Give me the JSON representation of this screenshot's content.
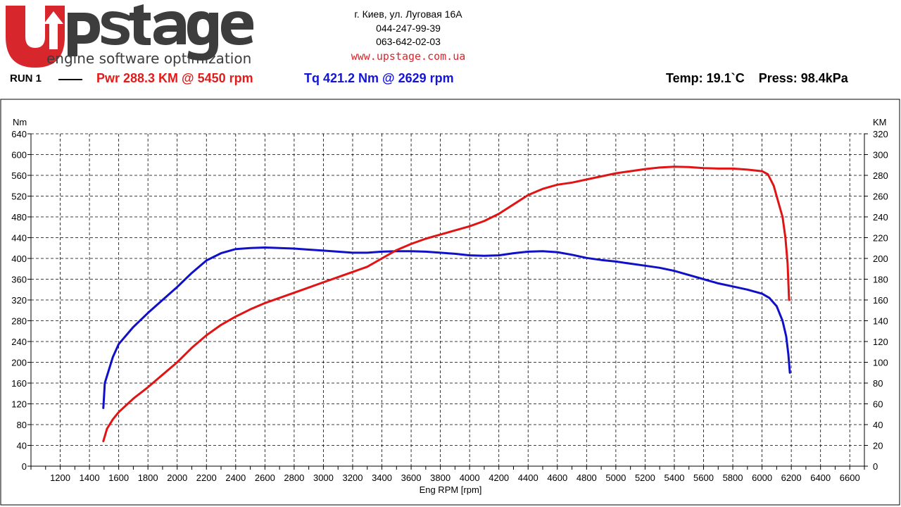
{
  "brand": {
    "logo_text": "Upstage",
    "tagline": "engine software optimization",
    "address": "г. Киев, ул. Луговая 16А",
    "phone_1": "044-247-99-39",
    "phone_2": "063-642-02-03",
    "website": "www.upstage.com.ua",
    "colors": {
      "red": "#d8262d",
      "gray": "#3d3d3d"
    }
  },
  "summary": {
    "run_label": "RUN 1",
    "power_text": "Pwr  288.3 KM @ 5450 rpm",
    "torque_text": "Tq 421.2 Nm @ 2629 rpm",
    "temp_text": "Temp: 19.1`C",
    "press_text": "Press: 98.4kPa"
  },
  "chart_data": {
    "type": "line",
    "xlabel": "Eng RPM [rpm]",
    "ylabel_left": "Nm",
    "ylabel_right": "KM",
    "xlim": [
      1000,
      6700
    ],
    "x_ticks": [
      1200,
      1400,
      1600,
      1800,
      2000,
      2200,
      2400,
      2600,
      2800,
      3000,
      3200,
      3400,
      3600,
      3800,
      4000,
      4200,
      4400,
      4600,
      4800,
      5000,
      5200,
      5400,
      5600,
      5800,
      6000,
      6200,
      6400,
      6600
    ],
    "y_left": {
      "lim": [
        0,
        640
      ],
      "ticks": [
        0,
        40,
        80,
        120,
        160,
        200,
        240,
        280,
        320,
        360,
        400,
        440,
        480,
        520,
        560,
        600,
        640
      ]
    },
    "y_right": {
      "lim": [
        0,
        320
      ],
      "ticks": [
        0,
        20,
        40,
        60,
        80,
        100,
        120,
        140,
        160,
        180,
        200,
        220,
        240,
        260,
        280,
        300,
        320
      ]
    },
    "grid": true,
    "series": [
      {
        "color": "#1010c8",
        "axis": "left",
        "points": [
          [
            1495,
            112
          ],
          [
            1505,
            160
          ],
          [
            1560,
            210
          ],
          [
            1600,
            235
          ],
          [
            1700,
            268
          ],
          [
            1800,
            295
          ],
          [
            1900,
            320
          ],
          [
            2000,
            345
          ],
          [
            2100,
            372
          ],
          [
            2200,
            396
          ],
          [
            2300,
            410
          ],
          [
            2400,
            418
          ],
          [
            2500,
            420
          ],
          [
            2600,
            421
          ],
          [
            2700,
            420
          ],
          [
            2800,
            419
          ],
          [
            2900,
            417
          ],
          [
            3000,
            415
          ],
          [
            3100,
            413
          ],
          [
            3200,
            411
          ],
          [
            3300,
            411
          ],
          [
            3400,
            413
          ],
          [
            3500,
            414
          ],
          [
            3600,
            414
          ],
          [
            3700,
            413
          ],
          [
            3800,
            411
          ],
          [
            3900,
            409
          ],
          [
            4000,
            406
          ],
          [
            4100,
            405
          ],
          [
            4200,
            406
          ],
          [
            4300,
            410
          ],
          [
            4400,
            413
          ],
          [
            4500,
            414
          ],
          [
            4600,
            412
          ],
          [
            4700,
            407
          ],
          [
            4800,
            401
          ],
          [
            4900,
            397
          ],
          [
            5000,
            394
          ],
          [
            5100,
            390
          ],
          [
            5200,
            386
          ],
          [
            5300,
            382
          ],
          [
            5400,
            376
          ],
          [
            5500,
            368
          ],
          [
            5600,
            360
          ],
          [
            5700,
            352
          ],
          [
            5800,
            346
          ],
          [
            5900,
            340
          ],
          [
            6000,
            332
          ],
          [
            6050,
            324
          ],
          [
            6100,
            308
          ],
          [
            6140,
            280
          ],
          [
            6165,
            250
          ],
          [
            6180,
            215
          ],
          [
            6190,
            180
          ]
        ]
      },
      {
        "color": "#e01414",
        "axis": "right",
        "points": [
          [
            1495,
            24
          ],
          [
            1520,
            36
          ],
          [
            1560,
            45
          ],
          [
            1600,
            52
          ],
          [
            1700,
            65
          ],
          [
            1800,
            76
          ],
          [
            1900,
            88
          ],
          [
            2000,
            100
          ],
          [
            2100,
            114
          ],
          [
            2200,
            126
          ],
          [
            2300,
            136
          ],
          [
            2400,
            144
          ],
          [
            2500,
            151
          ],
          [
            2600,
            157
          ],
          [
            2700,
            162
          ],
          [
            2800,
            167
          ],
          [
            2900,
            172
          ],
          [
            3000,
            177
          ],
          [
            3100,
            182
          ],
          [
            3200,
            187
          ],
          [
            3300,
            192
          ],
          [
            3400,
            200
          ],
          [
            3500,
            208
          ],
          [
            3600,
            214
          ],
          [
            3700,
            219
          ],
          [
            3800,
            223
          ],
          [
            3900,
            227
          ],
          [
            4000,
            231
          ],
          [
            4100,
            236
          ],
          [
            4200,
            243
          ],
          [
            4300,
            252
          ],
          [
            4400,
            261
          ],
          [
            4500,
            267
          ],
          [
            4600,
            271
          ],
          [
            4700,
            273
          ],
          [
            4800,
            276
          ],
          [
            4900,
            279
          ],
          [
            5000,
            282
          ],
          [
            5100,
            284
          ],
          [
            5200,
            286
          ],
          [
            5300,
            287.5
          ],
          [
            5400,
            288.3
          ],
          [
            5500,
            288
          ],
          [
            5600,
            287
          ],
          [
            5700,
            286.5
          ],
          [
            5800,
            286.5
          ],
          [
            5900,
            285.5
          ],
          [
            6000,
            284
          ],
          [
            6040,
            281
          ],
          [
            6080,
            270
          ],
          [
            6110,
            255
          ],
          [
            6140,
            240
          ],
          [
            6160,
            220
          ],
          [
            6175,
            195
          ],
          [
            6185,
            160
          ]
        ]
      }
    ]
  }
}
